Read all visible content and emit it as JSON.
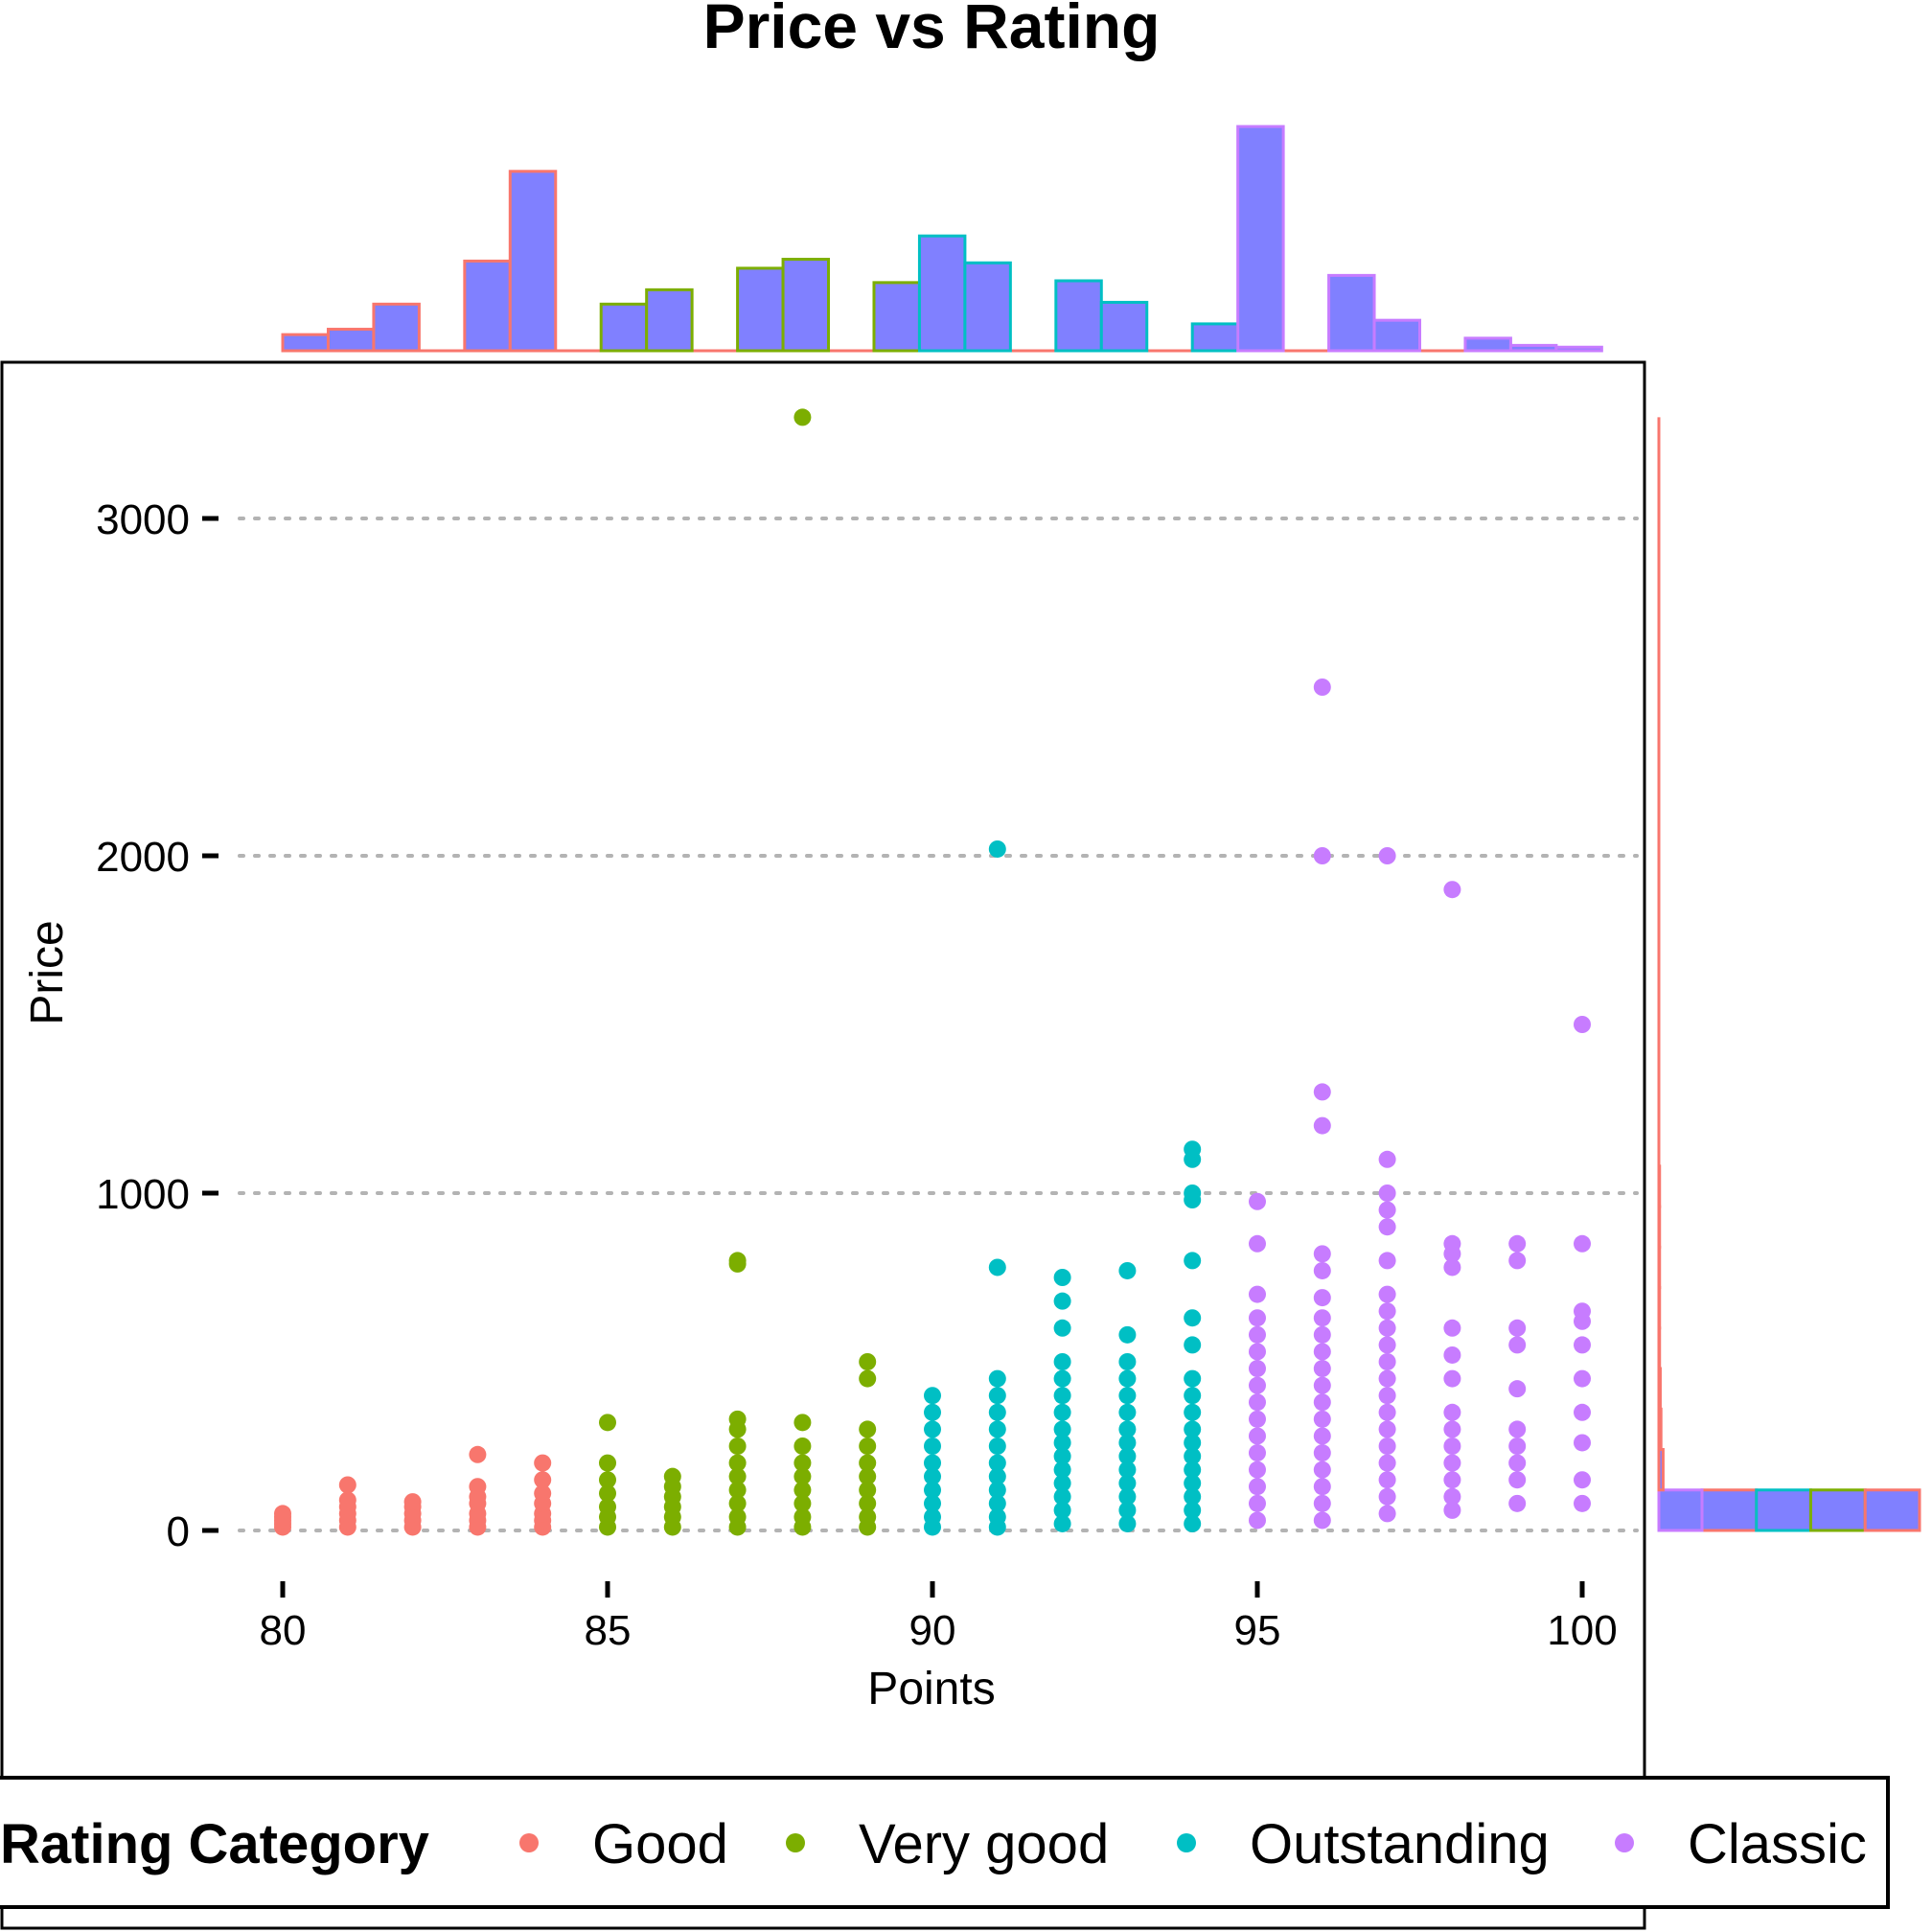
{
  "chart_data": {
    "type": "scatter",
    "title": "Price vs Rating",
    "xlabel": "Points",
    "ylabel": "Price",
    "xlim": [
      78.7,
      101.1
    ],
    "ylim": [
      -170,
      3450
    ],
    "x_ticks": [
      "80",
      "85",
      "90",
      "95",
      "100"
    ],
    "x_tick_values": [
      80,
      85,
      90,
      95,
      100
    ],
    "y_ticks": [
      "0",
      "1000",
      "2000",
      "3000"
    ],
    "y_tick_values": [
      0,
      1000,
      2000,
      3000
    ],
    "grid": "horizontal-dotted",
    "legend": {
      "title": "Rating Category",
      "position": "bottom",
      "entries": [
        {
          "name": "Good",
          "color": "#F8766D"
        },
        {
          "name": "Very good",
          "color": "#7CAE00"
        },
        {
          "name": "Outstanding",
          "color": "#00BFC4"
        },
        {
          "name": "Classic",
          "color": "#C77CFF"
        }
      ]
    },
    "series": [
      {
        "name": "Good",
        "color": "#F8766D",
        "points": [
          [
            80,
            10
          ],
          [
            80,
            20
          ],
          [
            80,
            30
          ],
          [
            80,
            40
          ],
          [
            80,
            50
          ],
          [
            81,
            10
          ],
          [
            81,
            30
          ],
          [
            81,
            50
          ],
          [
            81,
            70
          ],
          [
            81,
            90
          ],
          [
            81,
            135
          ],
          [
            82,
            10
          ],
          [
            82,
            30
          ],
          [
            82,
            50
          ],
          [
            82,
            70
          ],
          [
            82,
            85
          ],
          [
            83,
            10
          ],
          [
            83,
            30
          ],
          [
            83,
            50
          ],
          [
            83,
            80
          ],
          [
            83,
            100
          ],
          [
            83,
            130
          ],
          [
            83,
            225
          ],
          [
            84,
            10
          ],
          [
            84,
            30
          ],
          [
            84,
            50
          ],
          [
            84,
            80
          ],
          [
            84,
            110
          ],
          [
            84,
            150
          ],
          [
            84,
            200
          ]
        ]
      },
      {
        "name": "Very good",
        "color": "#7CAE00",
        "points": [
          [
            85,
            10
          ],
          [
            85,
            40
          ],
          [
            85,
            70
          ],
          [
            85,
            110
          ],
          [
            85,
            150
          ],
          [
            85,
            200
          ],
          [
            85,
            320
          ],
          [
            86,
            10
          ],
          [
            86,
            40
          ],
          [
            86,
            70
          ],
          [
            86,
            100
          ],
          [
            86,
            130
          ],
          [
            86,
            160
          ],
          [
            87,
            10
          ],
          [
            87,
            40
          ],
          [
            87,
            80
          ],
          [
            87,
            120
          ],
          [
            87,
            160
          ],
          [
            87,
            200
          ],
          [
            87,
            250
          ],
          [
            87,
            300
          ],
          [
            87,
            330
          ],
          [
            87,
            790
          ],
          [
            87,
            800
          ],
          [
            88,
            10
          ],
          [
            88,
            40
          ],
          [
            88,
            80
          ],
          [
            88,
            120
          ],
          [
            88,
            160
          ],
          [
            88,
            200
          ],
          [
            88,
            250
          ],
          [
            88,
            320
          ],
          [
            88,
            3300
          ],
          [
            89,
            10
          ],
          [
            89,
            40
          ],
          [
            89,
            80
          ],
          [
            89,
            120
          ],
          [
            89,
            160
          ],
          [
            89,
            200
          ],
          [
            89,
            250
          ],
          [
            89,
            300
          ],
          [
            89,
            450
          ],
          [
            89,
            500
          ]
        ]
      },
      {
        "name": "Outstanding",
        "color": "#00BFC4",
        "points": [
          [
            90,
            10
          ],
          [
            90,
            40
          ],
          [
            90,
            80
          ],
          [
            90,
            120
          ],
          [
            90,
            160
          ],
          [
            90,
            200
          ],
          [
            90,
            250
          ],
          [
            90,
            300
          ],
          [
            90,
            350
          ],
          [
            90,
            400
          ],
          [
            91,
            10
          ],
          [
            91,
            40
          ],
          [
            91,
            80
          ],
          [
            91,
            120
          ],
          [
            91,
            160
          ],
          [
            91,
            200
          ],
          [
            91,
            250
          ],
          [
            91,
            300
          ],
          [
            91,
            350
          ],
          [
            91,
            400
          ],
          [
            91,
            450
          ],
          [
            91,
            780
          ],
          [
            91,
            2020
          ],
          [
            92,
            20
          ],
          [
            92,
            60
          ],
          [
            92,
            100
          ],
          [
            92,
            140
          ],
          [
            92,
            180
          ],
          [
            92,
            220
          ],
          [
            92,
            260
          ],
          [
            92,
            300
          ],
          [
            92,
            350
          ],
          [
            92,
            400
          ],
          [
            92,
            450
          ],
          [
            92,
            500
          ],
          [
            92,
            600
          ],
          [
            92,
            680
          ],
          [
            92,
            750
          ],
          [
            93,
            20
          ],
          [
            93,
            60
          ],
          [
            93,
            100
          ],
          [
            93,
            140
          ],
          [
            93,
            180
          ],
          [
            93,
            220
          ],
          [
            93,
            260
          ],
          [
            93,
            300
          ],
          [
            93,
            350
          ],
          [
            93,
            400
          ],
          [
            93,
            450
          ],
          [
            93,
            500
          ],
          [
            93,
            580
          ],
          [
            93,
            770
          ],
          [
            94,
            20
          ],
          [
            94,
            60
          ],
          [
            94,
            100
          ],
          [
            94,
            140
          ],
          [
            94,
            180
          ],
          [
            94,
            220
          ],
          [
            94,
            260
          ],
          [
            94,
            300
          ],
          [
            94,
            350
          ],
          [
            94,
            400
          ],
          [
            94,
            450
          ],
          [
            94,
            550
          ],
          [
            94,
            630
          ],
          [
            94,
            800
          ],
          [
            94,
            980
          ],
          [
            94,
            1000
          ],
          [
            94,
            1100
          ],
          [
            94,
            1130
          ]
        ]
      },
      {
        "name": "Classic",
        "color": "#C77CFF",
        "points": [
          [
            95,
            30
          ],
          [
            95,
            80
          ],
          [
            95,
            130
          ],
          [
            95,
            180
          ],
          [
            95,
            230
          ],
          [
            95,
            280
          ],
          [
            95,
            330
          ],
          [
            95,
            380
          ],
          [
            95,
            430
          ],
          [
            95,
            480
          ],
          [
            95,
            530
          ],
          [
            95,
            580
          ],
          [
            95,
            630
          ],
          [
            95,
            700
          ],
          [
            95,
            850
          ],
          [
            95,
            975
          ],
          [
            96,
            30
          ],
          [
            96,
            80
          ],
          [
            96,
            130
          ],
          [
            96,
            180
          ],
          [
            96,
            230
          ],
          [
            96,
            280
          ],
          [
            96,
            330
          ],
          [
            96,
            380
          ],
          [
            96,
            430
          ],
          [
            96,
            480
          ],
          [
            96,
            530
          ],
          [
            96,
            580
          ],
          [
            96,
            630
          ],
          [
            96,
            690
          ],
          [
            96,
            770
          ],
          [
            96,
            820
          ],
          [
            96,
            1200
          ],
          [
            96,
            1300
          ],
          [
            96,
            2000
          ],
          [
            96,
            2500
          ],
          [
            97,
            50
          ],
          [
            97,
            100
          ],
          [
            97,
            150
          ],
          [
            97,
            200
          ],
          [
            97,
            250
          ],
          [
            97,
            300
          ],
          [
            97,
            350
          ],
          [
            97,
            400
          ],
          [
            97,
            450
          ],
          [
            97,
            500
          ],
          [
            97,
            550
          ],
          [
            97,
            600
          ],
          [
            97,
            650
          ],
          [
            97,
            700
          ],
          [
            97,
            800
          ],
          [
            97,
            900
          ],
          [
            97,
            950
          ],
          [
            97,
            1000
          ],
          [
            97,
            1100
          ],
          [
            97,
            2000
          ],
          [
            98,
            60
          ],
          [
            98,
            100
          ],
          [
            98,
            150
          ],
          [
            98,
            200
          ],
          [
            98,
            250
          ],
          [
            98,
            300
          ],
          [
            98,
            350
          ],
          [
            98,
            450
          ],
          [
            98,
            520
          ],
          [
            98,
            600
          ],
          [
            98,
            780
          ],
          [
            98,
            820
          ],
          [
            98,
            850
          ],
          [
            98,
            1900
          ],
          [
            99,
            80
          ],
          [
            99,
            150
          ],
          [
            99,
            200
          ],
          [
            99,
            250
          ],
          [
            99,
            300
          ],
          [
            99,
            420
          ],
          [
            99,
            550
          ],
          [
            99,
            600
          ],
          [
            99,
            800
          ],
          [
            99,
            850
          ],
          [
            100,
            80
          ],
          [
            100,
            150
          ],
          [
            100,
            260
          ],
          [
            100,
            350
          ],
          [
            100,
            450
          ],
          [
            100,
            550
          ],
          [
            100,
            620
          ],
          [
            100,
            650
          ],
          [
            100,
            850
          ],
          [
            100,
            1500
          ]
        ]
      }
    ],
    "x_histogram": {
      "fill": "#8080FF",
      "bins": [
        {
          "x": 80,
          "count": 9,
          "color": "#F8766D"
        },
        {
          "x": 80.7,
          "count": 12,
          "color": "#F8766D"
        },
        {
          "x": 81.4,
          "count": 26,
          "color": "#F8766D"
        },
        {
          "x": 82.1,
          "count": 0,
          "color": "#F8766D"
        },
        {
          "x": 82.8,
          "count": 50,
          "color": "#F8766D"
        },
        {
          "x": 83.5,
          "count": 100,
          "color": "#F8766D"
        },
        {
          "x": 84.2,
          "count": 0,
          "color": "#F8766D"
        },
        {
          "x": 84.9,
          "count": 26,
          "color": "#7CAE00"
        },
        {
          "x": 85.6,
          "count": 34,
          "color": "#7CAE00"
        },
        {
          "x": 86.3,
          "count": 0,
          "color": "#7CAE00"
        },
        {
          "x": 87,
          "count": 46,
          "color": "#7CAE00"
        },
        {
          "x": 87.7,
          "count": 51,
          "color": "#7CAE00"
        },
        {
          "x": 88.4,
          "count": 0,
          "color": "#7CAE00"
        },
        {
          "x": 89.1,
          "count": 38,
          "color": "#7CAE00"
        },
        {
          "x": 89.8,
          "count": 64,
          "color": "#00BFC4"
        },
        {
          "x": 90.5,
          "count": 49,
          "color": "#00BFC4"
        },
        {
          "x": 91.2,
          "count": 0,
          "color": "#00BFC4"
        },
        {
          "x": 91.9,
          "count": 39,
          "color": "#00BFC4"
        },
        {
          "x": 92.6,
          "count": 27,
          "color": "#00BFC4"
        },
        {
          "x": 93.3,
          "count": 0,
          "color": "#00BFC4"
        },
        {
          "x": 94,
          "count": 15,
          "color": "#00BFC4"
        },
        {
          "x": 94.7,
          "count": 125,
          "color": "#C77CFF"
        },
        {
          "x": 95.4,
          "count": 0,
          "color": "#C77CFF"
        },
        {
          "x": 96.1,
          "count": 42,
          "color": "#C77CFF"
        },
        {
          "x": 96.8,
          "count": 17,
          "color": "#C77CFF"
        },
        {
          "x": 97.5,
          "count": 0,
          "color": "#C77CFF"
        },
        {
          "x": 98.2,
          "count": 7,
          "color": "#C77CFF"
        },
        {
          "x": 98.9,
          "count": 3,
          "color": "#C77CFF"
        },
        {
          "x": 99.6,
          "count": 2,
          "color": "#C77CFF"
        }
      ]
    },
    "y_histogram": {
      "fill": "#8080FF",
      "bins": [
        {
          "y": 0,
          "count": 370
        },
        {
          "y": 120,
          "count": 6
        },
        {
          "y": 240,
          "count": 3
        },
        {
          "y": 360,
          "count": 2
        },
        {
          "y": 480,
          "count": 1
        },
        {
          "y": 600,
          "count": 1
        },
        {
          "y": 720,
          "count": 1
        },
        {
          "y": 840,
          "count": 1
        },
        {
          "y": 960,
          "count": 1
        }
      ]
    }
  }
}
